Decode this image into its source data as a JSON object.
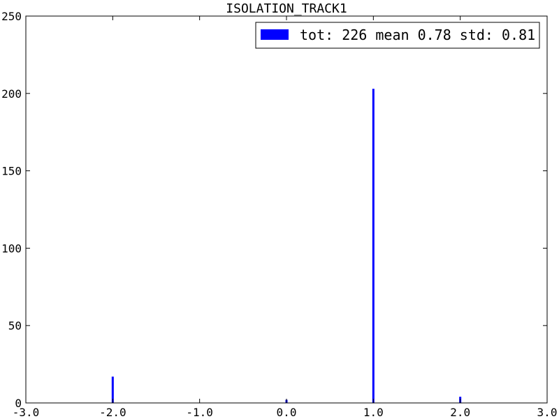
{
  "chart_data": {
    "type": "bar",
    "title": "ISOLATION_TRACK1",
    "xlabel": "",
    "ylabel": "",
    "xlim": [
      -3.0,
      3.0
    ],
    "ylim": [
      0,
      250
    ],
    "xticks": [
      "-3.0",
      "-2.0",
      "-1.0",
      "0.0",
      "1.0",
      "2.0",
      "3.0"
    ],
    "yticks": [
      "0",
      "50",
      "100",
      "150",
      "200",
      "250"
    ],
    "bar_width": 0.02,
    "bar_color": "#0000ff",
    "grid": false,
    "legend_position": "top-right",
    "series": [
      {
        "name": "tot: 226 mean 0.78 std: 0.81",
        "x": [
          -2.0,
          0.0,
          1.0,
          2.0
        ],
        "values": [
          17,
          2,
          203,
          4
        ]
      }
    ]
  }
}
